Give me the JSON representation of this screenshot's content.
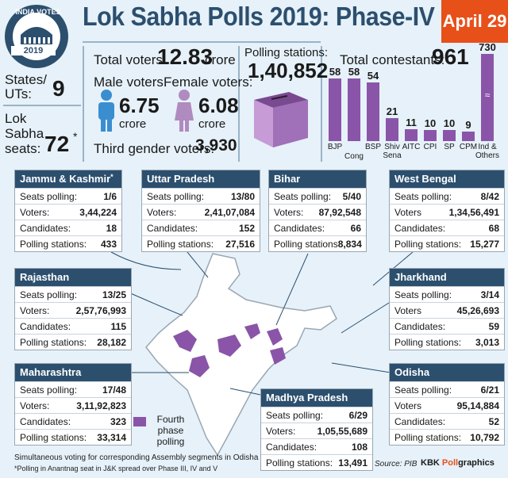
{
  "header": {
    "title": "Lok Sabha Polls 2019: Phase-IV",
    "date": "April 29",
    "logo_top": "INDIA VOTES",
    "logo_year": "2019"
  },
  "summary": {
    "states_label": "States/ UTs:",
    "states_value": "9",
    "seats_label": "Lok Sabha seats:",
    "seats_value": "72",
    "seats_mark": "*",
    "total_voters_label": "Total voters:",
    "total_voters_value": "12.83",
    "total_voters_unit": "crore",
    "male_label": "Male voters:",
    "male_value": "6.75",
    "male_unit": "crore",
    "female_label": "Female voters:",
    "female_value": "6.08",
    "female_unit": "crore",
    "third_label": "Third gender voters:",
    "third_value": "3,930",
    "polling_label": "Polling stations:",
    "polling_value": "1,40,852",
    "contestants_label": "Total contestants:",
    "contestants_value": "961"
  },
  "chart_data": {
    "type": "bar",
    "categories": [
      "BJP",
      "Cong",
      "BSP",
      "Shiv Sena",
      "AITC",
      "CPI",
      "SP",
      "CPM",
      "Ind & Others"
    ],
    "values": [
      58,
      58,
      54,
      21,
      11,
      10,
      10,
      9,
      730
    ],
    "axis_break": true,
    "color": "#8a55a8"
  },
  "states": [
    {
      "name": "Jammu & Kashmir",
      "mark": "*",
      "rows": [
        [
          "Seats polling:",
          "1/6"
        ],
        [
          "Voters:",
          "3,44,224"
        ],
        [
          "Candidates:",
          "18"
        ],
        [
          "Polling stations:",
          "433"
        ]
      ]
    },
    {
      "name": "Uttar Pradesh",
      "mark": "",
      "rows": [
        [
          "Seats polling:",
          "13/80"
        ],
        [
          "Voters:",
          "2,41,07,084"
        ],
        [
          "Candidates:",
          "152"
        ],
        [
          "Polling stations:",
          "27,516"
        ]
      ]
    },
    {
      "name": "Bihar",
      "mark": "",
      "rows": [
        [
          "Seats polling:",
          "5/40"
        ],
        [
          "Voters:",
          "87,92,548"
        ],
        [
          "Candidates:",
          "66"
        ],
        [
          "Polling stations",
          "8,834"
        ]
      ]
    },
    {
      "name": "West Bengal",
      "mark": "",
      "rows": [
        [
          "Seats polling:",
          "8/42"
        ],
        [
          "Voters",
          "1,34,56,491"
        ],
        [
          "Candidates:",
          "68"
        ],
        [
          "Polling stations:",
          "15,277"
        ]
      ]
    },
    {
      "name": "Rajasthan",
      "mark": "",
      "rows": [
        [
          "Seats polling:",
          "13/25"
        ],
        [
          "Voters:",
          "2,57,76,993"
        ],
        [
          "Candidates:",
          "115"
        ],
        [
          "Polling stations:",
          "28,182"
        ]
      ]
    },
    {
      "name": "Jharkhand",
      "mark": "",
      "rows": [
        [
          "Seats polling:",
          "3/14"
        ],
        [
          "Voters",
          "45,26,693"
        ],
        [
          "Candidates:",
          "59"
        ],
        [
          "Polling stations:",
          "3,013"
        ]
      ]
    },
    {
      "name": "Maharashtra",
      "mark": "",
      "rows": [
        [
          "Seats polling:",
          "17/48"
        ],
        [
          "Voters:",
          "3,11,92,823"
        ],
        [
          "Candidates:",
          "323"
        ],
        [
          "Polling stations:",
          "33,314"
        ]
      ]
    },
    {
      "name": "Odisha",
      "mark": "",
      "rows": [
        [
          "Seats polling:",
          "6/21"
        ],
        [
          "Voters",
          "95,14,884"
        ],
        [
          "Candidates:",
          "52"
        ],
        [
          "Polling stations:",
          "10,792"
        ]
      ]
    },
    {
      "name": "Madhya Pradesh",
      "mark": "",
      "rows": [
        [
          "Seats polling:",
          "6/29"
        ],
        [
          "Voters:",
          "1,05,55,689"
        ],
        [
          "Candidates:",
          "108"
        ],
        [
          "Polling stations:",
          "13,491"
        ]
      ]
    }
  ],
  "legend": {
    "label": "Fourth phase polling",
    "color": "#8a55a8"
  },
  "footer": {
    "note1": "Simultaneous voting for corresponding Assembly segments in Odisha",
    "note2": "*Polling in Anantnag seat in J&K spread over Phase III, IV and V",
    "source": "Source: PIB",
    "credit_a": "KBK ",
    "credit_b": "Poll",
    "credit_c": "graphics"
  }
}
